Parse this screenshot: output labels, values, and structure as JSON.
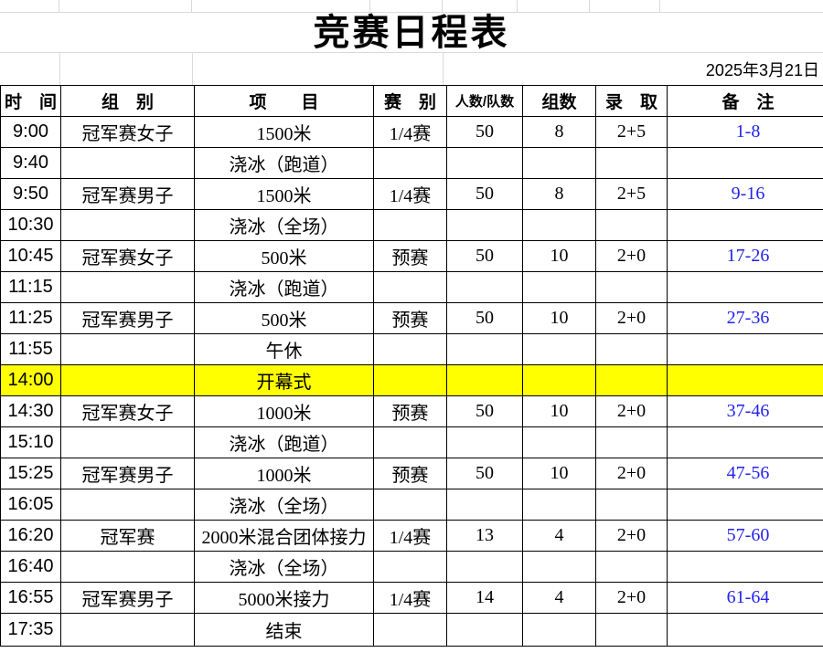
{
  "sheet": {
    "title": "竞赛日程表",
    "date": "2025年3月21日"
  },
  "table": {
    "columns": [
      {
        "key": "time",
        "label": "时　间"
      },
      {
        "key": "group",
        "label": "组　别"
      },
      {
        "key": "event",
        "label": "项　　目"
      },
      {
        "key": "race",
        "label": "赛　别"
      },
      {
        "key": "count",
        "label": "人数/队数",
        "small": true
      },
      {
        "key": "groups",
        "label": "组数"
      },
      {
        "key": "admit",
        "label": "录　取"
      },
      {
        "key": "note",
        "label": "备　注"
      }
    ],
    "rows": [
      {
        "time": "9:00",
        "group": "冠军赛女子",
        "event": "1500米",
        "race": "1/4赛",
        "count": "50",
        "groups": "8",
        "admit": "2+5",
        "note": "1-8"
      },
      {
        "time": "9:40",
        "group": "",
        "event": "浇冰（跑道）",
        "race": "",
        "count": "",
        "groups": "",
        "admit": "",
        "note": ""
      },
      {
        "time": "9:50",
        "group": "冠军赛男子",
        "event": "1500米",
        "race": "1/4赛",
        "count": "50",
        "groups": "8",
        "admit": "2+5",
        "note": "9-16"
      },
      {
        "time": "10:30",
        "group": "",
        "event": "浇冰（全场）",
        "race": "",
        "count": "",
        "groups": "",
        "admit": "",
        "note": ""
      },
      {
        "time": "10:45",
        "group": "冠军赛女子",
        "event": "500米",
        "race": "预赛",
        "count": "50",
        "groups": "10",
        "admit": "2+0",
        "note": "17-26"
      },
      {
        "time": "11:15",
        "group": "",
        "event": "浇冰（跑道）",
        "race": "",
        "count": "",
        "groups": "",
        "admit": "",
        "note": ""
      },
      {
        "time": "11:25",
        "group": "冠军赛男子",
        "event": "500米",
        "race": "预赛",
        "count": "50",
        "groups": "10",
        "admit": "2+0",
        "note": "27-36"
      },
      {
        "time": "11:55",
        "group": "",
        "event": "午休",
        "race": "",
        "count": "",
        "groups": "",
        "admit": "",
        "note": ""
      },
      {
        "time": "14:00",
        "group": "",
        "event": "开幕式",
        "race": "",
        "count": "",
        "groups": "",
        "admit": "",
        "note": "",
        "highlight": true
      },
      {
        "time": "14:30",
        "group": "冠军赛女子",
        "event": "1000米",
        "race": "预赛",
        "count": "50",
        "groups": "10",
        "admit": "2+0",
        "note": "37-46"
      },
      {
        "time": "15:10",
        "group": "",
        "event": "浇冰（跑道）",
        "race": "",
        "count": "",
        "groups": "",
        "admit": "",
        "note": ""
      },
      {
        "time": "15:25",
        "group": "冠军赛男子",
        "event": "1000米",
        "race": "预赛",
        "count": "50",
        "groups": "10",
        "admit": "2+0",
        "note": "47-56"
      },
      {
        "time": "16:05",
        "group": "",
        "event": "浇冰（全场）",
        "race": "",
        "count": "",
        "groups": "",
        "admit": "",
        "note": ""
      },
      {
        "time": "16:20",
        "group": "冠军赛",
        "event": "2000米混合团体接力",
        "race": "1/4赛",
        "count": "13",
        "groups": "4",
        "admit": "2+0",
        "note": "57-60"
      },
      {
        "time": "16:40",
        "group": "",
        "event": "浇冰（全场）",
        "race": "",
        "count": "",
        "groups": "",
        "admit": "",
        "note": ""
      },
      {
        "time": "16:55",
        "group": "冠军赛男子",
        "event": "5000米接力",
        "race": "1/4赛",
        "count": "14",
        "groups": "4",
        "admit": "2+0",
        "note": "61-64"
      },
      {
        "time": "17:35",
        "group": "",
        "event": "结束",
        "race": "",
        "count": "",
        "groups": "",
        "admit": "",
        "note": ""
      }
    ]
  },
  "colors": {
    "highlight_yellow": "#ffff00",
    "note_blue": "#2222ee",
    "table_border": "#000000",
    "faint_gridline": "#d9d9d9"
  }
}
